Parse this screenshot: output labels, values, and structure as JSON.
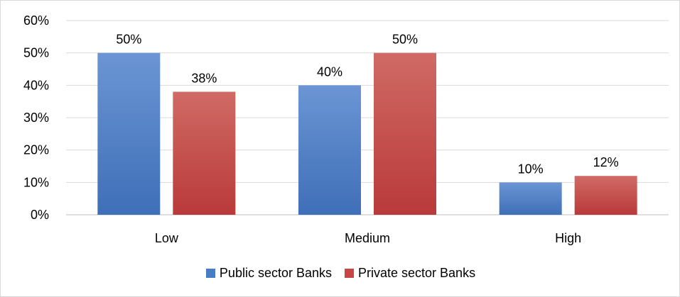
{
  "chart_data": {
    "type": "bar",
    "categories": [
      "Low",
      "Medium",
      "High"
    ],
    "series": [
      {
        "name": "Public sector Banks",
        "values": [
          50,
          40,
          10
        ],
        "labels": [
          "50%",
          "40%",
          "10%"
        ],
        "color": "#4a7cc4"
      },
      {
        "name": "Private sector Banks",
        "values": [
          38,
          50,
          12
        ],
        "labels": [
          "38%",
          "50%",
          "12%"
        ],
        "color": "#c94545"
      }
    ],
    "yticks": [
      "0%",
      "10%",
      "20%",
      "30%",
      "40%",
      "50%",
      "60%"
    ],
    "ylim": [
      0,
      60
    ],
    "grid": true,
    "legend_position": "bottom"
  }
}
